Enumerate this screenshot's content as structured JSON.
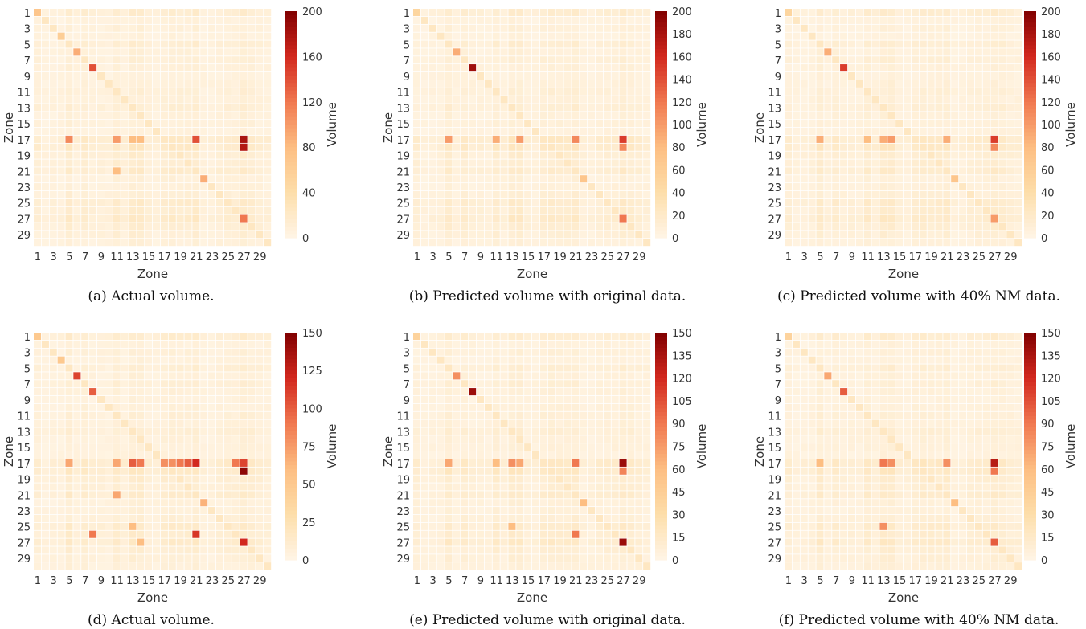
{
  "chart_data": [
    {
      "type": "heatmap",
      "caption": "(a) Actual volume.",
      "xlabel": "Zone",
      "ylabel": "Zone",
      "colorbar_label": "Volume",
      "x_ticks": [
        "1",
        "3",
        "5",
        "7",
        "9",
        "11",
        "13",
        "15",
        "17",
        "19",
        "21",
        "23",
        "25",
        "27",
        "29"
      ],
      "y_ticks": [
        "1",
        "3",
        "5",
        "7",
        "9",
        "11",
        "13",
        "15",
        "17",
        "19",
        "21",
        "23",
        "25",
        "27",
        "29"
      ],
      "vmin": 0,
      "vmax": 200,
      "colorbar_ticks": [
        "0",
        "40",
        "80",
        "120",
        "160",
        "200"
      ],
      "highlights": [
        [
          1,
          1,
          70
        ],
        [
          4,
          4,
          60
        ],
        [
          6,
          6,
          90
        ],
        [
          8,
          8,
          140
        ],
        [
          17,
          5,
          110
        ],
        [
          17,
          11,
          100
        ],
        [
          17,
          13,
          80
        ],
        [
          17,
          14,
          80
        ],
        [
          17,
          21,
          140
        ],
        [
          17,
          27,
          180
        ],
        [
          18,
          27,
          175
        ],
        [
          21,
          11,
          80
        ],
        [
          22,
          22,
          90
        ],
        [
          27,
          27,
          120
        ]
      ]
    },
    {
      "type": "heatmap",
      "caption": "(b) Predicted volume with original data.",
      "xlabel": "Zone",
      "ylabel": "Zone",
      "colorbar_label": "Volume",
      "x_ticks": [
        "1",
        "3",
        "5",
        "7",
        "9",
        "11",
        "13",
        "15",
        "17",
        "19",
        "21",
        "23",
        "25",
        "27",
        "29"
      ],
      "y_ticks": [
        "1",
        "3",
        "5",
        "7",
        "9",
        "11",
        "13",
        "15",
        "17",
        "19",
        "21",
        "23",
        "25",
        "27",
        "29"
      ],
      "vmin": 0,
      "vmax": 200,
      "colorbar_ticks": [
        "0",
        "20",
        "40",
        "60",
        "80",
        "100",
        "120",
        "140",
        "160",
        "180",
        "200"
      ],
      "highlights": [
        [
          1,
          1,
          50
        ],
        [
          6,
          6,
          90
        ],
        [
          8,
          8,
          185
        ],
        [
          17,
          5,
          100
        ],
        [
          17,
          11,
          90
        ],
        [
          17,
          14,
          100
        ],
        [
          17,
          21,
          110
        ],
        [
          17,
          27,
          150
        ],
        [
          18,
          27,
          110
        ],
        [
          22,
          22,
          70
        ],
        [
          27,
          27,
          120
        ]
      ]
    },
    {
      "type": "heatmap",
      "caption": "(c) Predicted volume with 40% NM data.",
      "xlabel": "Zone",
      "ylabel": "Zone",
      "colorbar_label": "Volume",
      "x_ticks": [
        "1",
        "3",
        "5",
        "7",
        "9",
        "11",
        "13",
        "15",
        "17",
        "19",
        "21",
        "23",
        "25",
        "27",
        "29"
      ],
      "y_ticks": [
        "1",
        "3",
        "5",
        "7",
        "9",
        "11",
        "13",
        "15",
        "17",
        "19",
        "21",
        "23",
        "25",
        "27",
        "29"
      ],
      "vmin": 0,
      "vmax": 200,
      "colorbar_ticks": [
        "0",
        "20",
        "40",
        "60",
        "80",
        "100",
        "120",
        "140",
        "160",
        "180",
        "200"
      ],
      "highlights": [
        [
          1,
          1,
          50
        ],
        [
          6,
          6,
          90
        ],
        [
          8,
          8,
          150
        ],
        [
          17,
          5,
          90
        ],
        [
          17,
          11,
          80
        ],
        [
          17,
          13,
          90
        ],
        [
          17,
          14,
          100
        ],
        [
          17,
          21,
          90
        ],
        [
          17,
          27,
          150
        ],
        [
          18,
          27,
          110
        ],
        [
          22,
          22,
          70
        ],
        [
          27,
          27,
          100
        ]
      ]
    },
    {
      "type": "heatmap",
      "caption": "(d) Actual volume.",
      "xlabel": "Zone",
      "ylabel": "Zone",
      "colorbar_label": "Volume",
      "x_ticks": [
        "1",
        "3",
        "5",
        "7",
        "9",
        "11",
        "13",
        "15",
        "17",
        "19",
        "21",
        "23",
        "25",
        "27",
        "29"
      ],
      "y_ticks": [
        "1",
        "3",
        "5",
        "7",
        "9",
        "11",
        "13",
        "15",
        "17",
        "19",
        "21",
        "23",
        "25",
        "27",
        "29"
      ],
      "vmin": 0,
      "vmax": 150,
      "colorbar_ticks": [
        "0",
        "25",
        "50",
        "75",
        "100",
        "125",
        "150"
      ],
      "highlights": [
        [
          1,
          1,
          50
        ],
        [
          4,
          4,
          50
        ],
        [
          6,
          6,
          110
        ],
        [
          8,
          8,
          100
        ],
        [
          17,
          5,
          70
        ],
        [
          17,
          11,
          70
        ],
        [
          17,
          13,
          100
        ],
        [
          17,
          14,
          90
        ],
        [
          17,
          17,
          80
        ],
        [
          17,
          18,
          80
        ],
        [
          17,
          19,
          90
        ],
        [
          17,
          20,
          100
        ],
        [
          17,
          21,
          120
        ],
        [
          17,
          26,
          90
        ],
        [
          17,
          27,
          110
        ],
        [
          18,
          27,
          145
        ],
        [
          21,
          11,
          70
        ],
        [
          22,
          22,
          65
        ],
        [
          25,
          13,
          60
        ],
        [
          26,
          8,
          90
        ],
        [
          26,
          21,
          115
        ],
        [
          27,
          27,
          120
        ],
        [
          27,
          14,
          60
        ]
      ]
    },
    {
      "type": "heatmap",
      "caption": "(e) Predicted volume with original data.",
      "xlabel": "Zone",
      "ylabel": "Zone",
      "colorbar_label": "Volume",
      "x_ticks": [
        "1",
        "3",
        "5",
        "7",
        "9",
        "11",
        "13",
        "15",
        "17",
        "19",
        "21",
        "23",
        "25",
        "27",
        "29"
      ],
      "y_ticks": [
        "1",
        "3",
        "5",
        "7",
        "9",
        "11",
        "13",
        "15",
        "17",
        "19",
        "21",
        "23",
        "25",
        "27",
        "29"
      ],
      "vmin": 0,
      "vmax": 150,
      "colorbar_ticks": [
        "0",
        "15",
        "30",
        "45",
        "60",
        "75",
        "90",
        "105",
        "120",
        "135",
        "150"
      ],
      "highlights": [
        [
          1,
          1,
          40
        ],
        [
          6,
          6,
          80
        ],
        [
          8,
          8,
          140
        ],
        [
          17,
          5,
          70
        ],
        [
          17,
          11,
          60
        ],
        [
          17,
          13,
          80
        ],
        [
          17,
          14,
          70
        ],
        [
          17,
          21,
          90
        ],
        [
          17,
          27,
          140
        ],
        [
          18,
          27,
          85
        ],
        [
          22,
          22,
          60
        ],
        [
          25,
          13,
          60
        ],
        [
          27,
          27,
          140
        ],
        [
          26,
          21,
          90
        ]
      ]
    },
    {
      "type": "heatmap",
      "caption": "(f) Predicted volume with 40% NM data.",
      "xlabel": "Zone",
      "ylabel": "Zone",
      "colorbar_label": "Volume",
      "x_ticks": [
        "1",
        "3",
        "5",
        "7",
        "9",
        "11",
        "13",
        "15",
        "17",
        "19",
        "21",
        "23",
        "25",
        "27",
        "29"
      ],
      "y_ticks": [
        "1",
        "3",
        "5",
        "7",
        "9",
        "11",
        "13",
        "15",
        "17",
        "19",
        "21",
        "23",
        "25",
        "27",
        "29"
      ],
      "vmin": 0,
      "vmax": 150,
      "colorbar_ticks": [
        "0",
        "15",
        "30",
        "45",
        "60",
        "75",
        "90",
        "105",
        "120",
        "135",
        "150"
      ],
      "highlights": [
        [
          1,
          1,
          40
        ],
        [
          6,
          6,
          70
        ],
        [
          8,
          8,
          100
        ],
        [
          17,
          5,
          60
        ],
        [
          17,
          13,
          90
        ],
        [
          17,
          14,
          80
        ],
        [
          17,
          21,
          80
        ],
        [
          17,
          27,
          130
        ],
        [
          18,
          27,
          90
        ],
        [
          22,
          22,
          60
        ],
        [
          25,
          13,
          80
        ],
        [
          27,
          27,
          100
        ]
      ]
    }
  ]
}
